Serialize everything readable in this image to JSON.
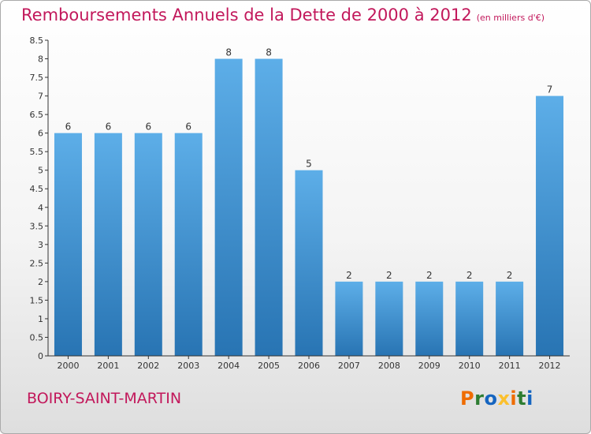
{
  "header": {
    "title": "Remboursements Annuels de la Dette de 2000 à 2012",
    "unit": "(en milliers d'€)"
  },
  "footer": {
    "commune": "BOIRY-SAINT-MARTIN",
    "brand": "Proxiti"
  },
  "colors": {
    "title": "#c2185b",
    "bar_top": "#5daee8",
    "bar_bottom": "#2874b3",
    "brand_letters": [
      "#ef6c00",
      "#2e7d32",
      "#1565c0",
      "#fbc02d",
      "#ef6c00",
      "#2e7d32",
      "#1565c0"
    ]
  },
  "chart_data": {
    "type": "bar",
    "categories": [
      "2000",
      "2001",
      "2002",
      "2003",
      "2004",
      "2005",
      "2006",
      "2007",
      "2008",
      "2009",
      "2010",
      "2011",
      "2012"
    ],
    "values": [
      6,
      6,
      6,
      6,
      8,
      8,
      5,
      2,
      2,
      2,
      2,
      2,
      7
    ],
    "value_labels": [
      "6",
      "6",
      "6",
      "6",
      "8",
      "8",
      "5",
      "2",
      "2",
      "2",
      "2",
      "2",
      "7"
    ],
    "yticks": [
      "0",
      "0.5",
      "1",
      "1.5",
      "2",
      "2.5",
      "3",
      "3.5",
      "4",
      "4.5",
      "5",
      "5.5",
      "6",
      "6.5",
      "7",
      "7.5",
      "8",
      "8.5"
    ],
    "ylim": [
      0,
      8.5
    ],
    "grid": false,
    "legend": "none"
  }
}
